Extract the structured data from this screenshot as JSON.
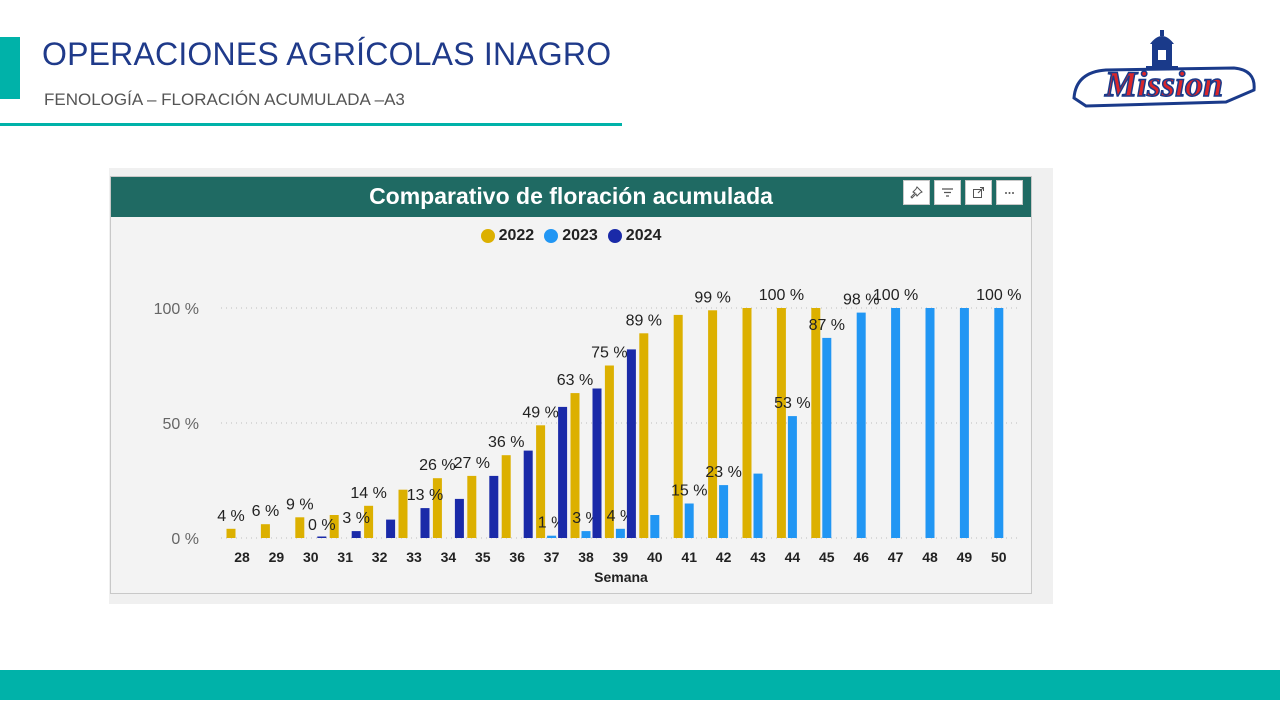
{
  "header": {
    "title": "OPERACIONES AGRÍCOLAS INAGRO",
    "subtitle": "FENOLOGÍA – FLORACIÓN ACUMULADA –A3"
  },
  "logo": {
    "text": "Mission"
  },
  "colors": {
    "accent": "#00b2a9",
    "header_bg": "#1f6a63",
    "title_text": "#1f3a8a"
  },
  "toolbar": {
    "pin_icon": "pin-icon",
    "filter_icon": "filter-icon",
    "focus_icon": "focus-mode-icon",
    "more_icon": "more-options-icon"
  },
  "chart_data": {
    "type": "bar",
    "title": "Comparativo de floración acumulada",
    "xlabel": "Semana",
    "ylabel": "",
    "ylim": [
      0,
      100
    ],
    "yticks": [
      "0 %",
      "50 %",
      "100 %"
    ],
    "grid": true,
    "legend_position": "top-center",
    "categories": [
      "28",
      "29",
      "30",
      "31",
      "32",
      "33",
      "34",
      "35",
      "36",
      "37",
      "38",
      "39",
      "40",
      "41",
      "42",
      "43",
      "44",
      "45",
      "46",
      "47",
      "48",
      "49",
      "50"
    ],
    "series": [
      {
        "name": "2022",
        "color": "#dcb000",
        "values": [
          4,
          6,
          9,
          10,
          14,
          21,
          26,
          27,
          36,
          49,
          63,
          75,
          89,
          97,
          99,
          100,
          100,
          100,
          null,
          null,
          null,
          null,
          null
        ],
        "labels": [
          "4 %",
          "6 %",
          "9 %",
          "",
          "14 %",
          "",
          "26 %",
          "27 %",
          "36 %",
          "49 %",
          "63 %",
          "75 %",
          "89 %",
          "",
          "99 %",
          "",
          "100 %",
          "",
          "",
          "",
          "",
          "",
          ""
        ]
      },
      {
        "name": "2023",
        "color": "#2196f3",
        "values": [
          null,
          null,
          null,
          null,
          null,
          null,
          null,
          null,
          null,
          1,
          3,
          4,
          10,
          15,
          23,
          28,
          53,
          87,
          98,
          100,
          100,
          100,
          100
        ],
        "labels": [
          "",
          "",
          "",
          "",
          "",
          "",
          "",
          "",
          "",
          "1 %",
          "3 %",
          "4 %",
          "",
          "15 %",
          "23 %",
          "",
          "53 %",
          "87 %",
          "98 %",
          "100 %",
          "",
          "",
          "100 %"
        ]
      },
      {
        "name": "2024",
        "color": "#1a2aa8",
        "values": [
          null,
          null,
          0,
          3,
          8,
          13,
          17,
          27,
          38,
          57,
          65,
          82,
          null,
          null,
          null,
          null,
          null,
          null,
          null,
          null,
          null,
          null,
          null
        ],
        "labels": [
          "",
          "",
          "0 %",
          "3 %",
          "",
          "13 %",
          "",
          "",
          "",
          "",
          "",
          "",
          "",
          "",
          "",
          "",
          "",
          "",
          "",
          "",
          "",
          "",
          ""
        ]
      }
    ]
  }
}
